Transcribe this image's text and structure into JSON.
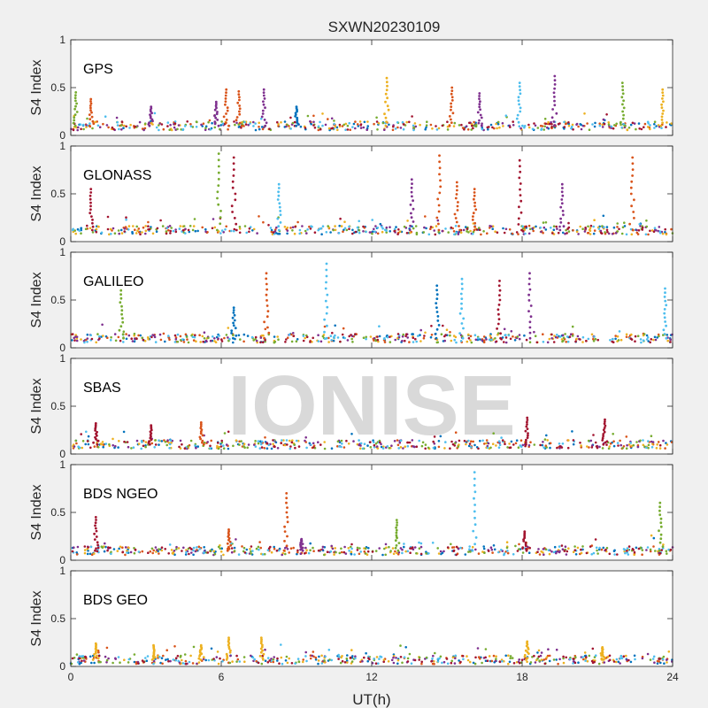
{
  "chart_data": {
    "type": "scatter",
    "title": "SXWN20230109",
    "xlabel": "UT(h)",
    "ylabel": "S4 Index",
    "xlim": [
      0,
      24
    ],
    "ylim": [
      0,
      1
    ],
    "xticks": [
      0,
      6,
      12,
      18,
      24
    ],
    "yticks": [
      0,
      0.5,
      1
    ],
    "xtick_labels": [
      "0",
      "6",
      "12",
      "18",
      "24"
    ],
    "ytick_labels": [
      "0",
      "0.5",
      "1"
    ],
    "grid": false,
    "legend": "none",
    "watermark": "IONISE",
    "series_colors": [
      "#0072BD",
      "#D95319",
      "#EDB120",
      "#7E2F8E",
      "#77AC30",
      "#4DBEEE",
      "#A2142F"
    ],
    "panels": [
      {
        "label": "GPS",
        "baseline": 0.1,
        "peaks": [
          {
            "x": 0.2,
            "y": 0.45,
            "series": 4
          },
          {
            "x": 0.8,
            "y": 0.38,
            "series": 1
          },
          {
            "x": 3.2,
            "y": 0.3,
            "series": 3
          },
          {
            "x": 5.8,
            "y": 0.35,
            "series": 3
          },
          {
            "x": 6.2,
            "y": 0.48,
            "series": 1
          },
          {
            "x": 6.7,
            "y": 0.46,
            "series": 1
          },
          {
            "x": 7.7,
            "y": 0.48,
            "series": 3
          },
          {
            "x": 9.0,
            "y": 0.3,
            "series": 0
          },
          {
            "x": 12.6,
            "y": 0.6,
            "series": 2
          },
          {
            "x": 15.2,
            "y": 0.5,
            "series": 1
          },
          {
            "x": 16.3,
            "y": 0.44,
            "series": 3
          },
          {
            "x": 17.9,
            "y": 0.55,
            "series": 5
          },
          {
            "x": 19.3,
            "y": 0.62,
            "series": 3
          },
          {
            "x": 22.0,
            "y": 0.55,
            "series": 4
          },
          {
            "x": 23.6,
            "y": 0.48,
            "series": 2
          }
        ]
      },
      {
        "label": "GLONASS",
        "baseline": 0.12,
        "peaks": [
          {
            "x": 0.8,
            "y": 0.55,
            "series": 6
          },
          {
            "x": 5.9,
            "y": 0.92,
            "series": 4
          },
          {
            "x": 6.5,
            "y": 0.88,
            "series": 6
          },
          {
            "x": 8.3,
            "y": 0.6,
            "series": 5
          },
          {
            "x": 13.6,
            "y": 0.65,
            "series": 3
          },
          {
            "x": 14.7,
            "y": 0.9,
            "series": 1
          },
          {
            "x": 15.4,
            "y": 0.62,
            "series": 1
          },
          {
            "x": 16.1,
            "y": 0.55,
            "series": 1
          },
          {
            "x": 17.9,
            "y": 0.85,
            "series": 6
          },
          {
            "x": 19.6,
            "y": 0.6,
            "series": 3
          },
          {
            "x": 22.4,
            "y": 0.88,
            "series": 1
          }
        ]
      },
      {
        "label": "GALILEO",
        "baseline": 0.1,
        "peaks": [
          {
            "x": 2.0,
            "y": 0.6,
            "series": 4
          },
          {
            "x": 6.5,
            "y": 0.42,
            "series": 0
          },
          {
            "x": 7.8,
            "y": 0.78,
            "series": 1
          },
          {
            "x": 10.2,
            "y": 0.88,
            "series": 5
          },
          {
            "x": 14.6,
            "y": 0.65,
            "series": 0
          },
          {
            "x": 15.6,
            "y": 0.72,
            "series": 5
          },
          {
            "x": 17.1,
            "y": 0.7,
            "series": 6
          },
          {
            "x": 18.3,
            "y": 0.78,
            "series": 3
          },
          {
            "x": 23.7,
            "y": 0.62,
            "series": 5
          }
        ]
      },
      {
        "label": "SBAS",
        "baseline": 0.1,
        "peaks": [
          {
            "x": 1.0,
            "y": 0.32,
            "series": 6
          },
          {
            "x": 3.2,
            "y": 0.3,
            "series": 6
          },
          {
            "x": 5.2,
            "y": 0.33,
            "series": 1
          },
          {
            "x": 18.2,
            "y": 0.38,
            "series": 6
          },
          {
            "x": 21.3,
            "y": 0.36,
            "series": 6
          }
        ]
      },
      {
        "label": "BDS NGEO",
        "baseline": 0.1,
        "peaks": [
          {
            "x": 1.0,
            "y": 0.45,
            "series": 6
          },
          {
            "x": 6.3,
            "y": 0.32,
            "series": 1
          },
          {
            "x": 8.6,
            "y": 0.7,
            "series": 1
          },
          {
            "x": 9.2,
            "y": 0.22,
            "series": 3
          },
          {
            "x": 13.0,
            "y": 0.42,
            "series": 4
          },
          {
            "x": 16.1,
            "y": 0.92,
            "series": 5
          },
          {
            "x": 18.1,
            "y": 0.3,
            "series": 6
          },
          {
            "x": 23.5,
            "y": 0.6,
            "series": 4
          }
        ]
      },
      {
        "label": "BDS GEO",
        "baseline": 0.07,
        "peaks": [
          {
            "x": 1.0,
            "y": 0.24,
            "series": 2
          },
          {
            "x": 3.3,
            "y": 0.22,
            "series": 2
          },
          {
            "x": 5.2,
            "y": 0.22,
            "series": 2
          },
          {
            "x": 6.3,
            "y": 0.3,
            "series": 2
          },
          {
            "x": 7.6,
            "y": 0.3,
            "series": 2
          },
          {
            "x": 18.2,
            "y": 0.26,
            "series": 2
          },
          {
            "x": 21.2,
            "y": 0.2,
            "series": 2
          }
        ]
      }
    ]
  }
}
